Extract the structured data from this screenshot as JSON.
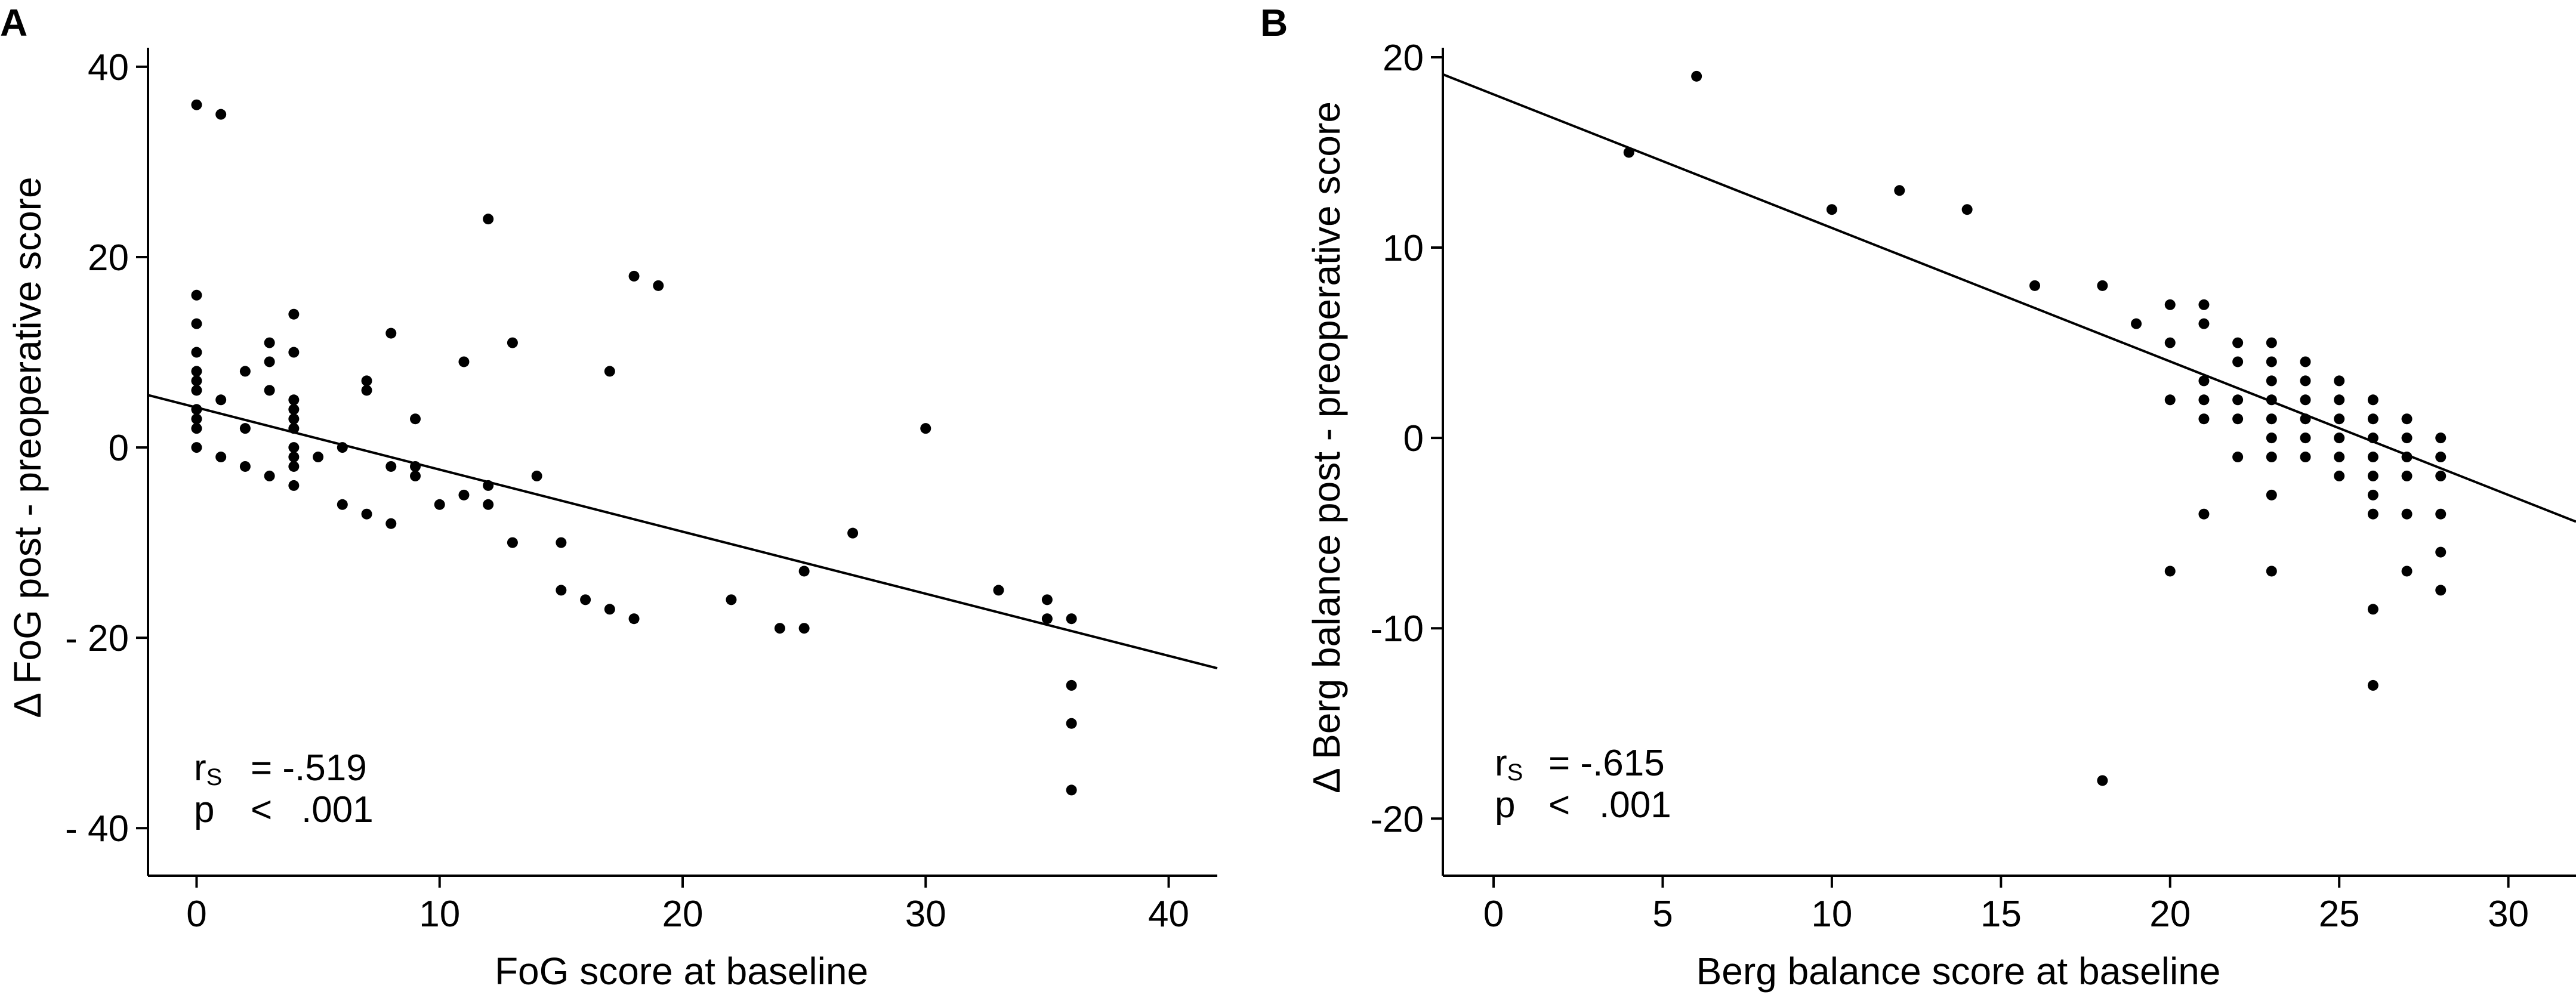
{
  "chart_data": [
    {
      "type": "scatter",
      "panel": "A",
      "xlabel": "FoG score  at baseline",
      "ylabel": "Δ FoG post - preoperative score",
      "xlim": [
        -2,
        42
      ],
      "ylim": [
        -45,
        42
      ],
      "xticks": [
        0,
        10,
        20,
        30,
        40
      ],
      "xtick_labels": [
        "0",
        "10",
        "20",
        "30",
        "40"
      ],
      "yticks": [
        40,
        20,
        0,
        -20,
        -40
      ],
      "ytick_labels": [
        "40",
        "20",
        "0",
        "- 20",
        "- 40"
      ],
      "trendline": {
        "x": [
          -2,
          42
        ],
        "y": [
          5.5,
          -23.2
        ]
      },
      "stat_rs": "r",
      "stat_rs_sub": "S",
      "stat_rs_value": "= -.519",
      "stat_p": "p",
      "stat_p_op": "<",
      "stat_p_value": ".001",
      "points": [
        [
          0,
          36
        ],
        [
          1,
          35
        ],
        [
          0,
          16
        ],
        [
          0,
          13
        ],
        [
          0,
          10
        ],
        [
          0,
          8
        ],
        [
          0,
          7
        ],
        [
          0,
          6
        ],
        [
          0,
          4
        ],
        [
          0,
          3
        ],
        [
          0,
          2
        ],
        [
          0,
          0
        ],
        [
          1,
          5
        ],
        [
          1,
          -1
        ],
        [
          2,
          8
        ],
        [
          2,
          2
        ],
        [
          2,
          -2
        ],
        [
          3,
          11
        ],
        [
          3,
          9
        ],
        [
          3,
          6
        ],
        [
          3,
          -3
        ],
        [
          4,
          14
        ],
        [
          4,
          10
        ],
        [
          4,
          5
        ],
        [
          4,
          4
        ],
        [
          4,
          3
        ],
        [
          4,
          2
        ],
        [
          4,
          0
        ],
        [
          4,
          -1
        ],
        [
          4,
          -2
        ],
        [
          4,
          -4
        ],
        [
          5,
          -1
        ],
        [
          6,
          0
        ],
        [
          6,
          -6
        ],
        [
          7,
          7
        ],
        [
          7,
          6
        ],
        [
          7,
          -7
        ],
        [
          8,
          12
        ],
        [
          8,
          -2
        ],
        [
          8,
          -8
        ],
        [
          9,
          3
        ],
        [
          9,
          -2
        ],
        [
          9,
          -3
        ],
        [
          10,
          -6
        ],
        [
          11,
          9
        ],
        [
          11,
          -5
        ],
        [
          12,
          24
        ],
        [
          12,
          -4
        ],
        [
          12,
          -6
        ],
        [
          13,
          11
        ],
        [
          13,
          -10
        ],
        [
          14,
          -3
        ],
        [
          15,
          -10
        ],
        [
          15,
          -15
        ],
        [
          16,
          -16
        ],
        [
          17,
          8
        ],
        [
          17,
          -17
        ],
        [
          18,
          18
        ],
        [
          18,
          -18
        ],
        [
          19,
          17
        ],
        [
          22,
          -16
        ],
        [
          24,
          -19
        ],
        [
          25,
          -13
        ],
        [
          25,
          -19
        ],
        [
          27,
          -9
        ],
        [
          30,
          2
        ],
        [
          33,
          -15
        ],
        [
          35,
          -16
        ],
        [
          35,
          -18
        ],
        [
          36,
          -18
        ],
        [
          36,
          -25
        ],
        [
          36,
          -29
        ],
        [
          36,
          -36
        ]
      ]
    },
    {
      "type": "scatter",
      "panel": "B",
      "xlabel": "Berg balance score at baseline",
      "ylabel": "Δ Berg balance  post - preoperative score",
      "xlim": [
        -1.5,
        32
      ],
      "ylim": [
        -23,
        20.5
      ],
      "xticks": [
        0,
        5,
        10,
        15,
        20,
        25,
        30
      ],
      "xtick_labels": [
        "0",
        "5",
        "10",
        "15",
        "20",
        "25",
        "30"
      ],
      "yticks": [
        20,
        10,
        0,
        -10,
        -20
      ],
      "ytick_labels": [
        "20",
        "10",
        "0",
        "-10",
        "-20"
      ],
      "trendline": {
        "x": [
          -1.5,
          32
        ],
        "y": [
          19.1,
          -4.4
        ]
      },
      "stat_rs": "r",
      "stat_rs_sub": "S",
      "stat_rs_value": "= -.615",
      "stat_p": "p",
      "stat_p_op": "<",
      "stat_p_value": ".001",
      "points": [
        [
          4,
          15
        ],
        [
          6,
          19
        ],
        [
          10,
          12
        ],
        [
          12,
          13
        ],
        [
          14,
          12
        ],
        [
          16,
          8
        ],
        [
          18,
          8
        ],
        [
          18,
          -18
        ],
        [
          19,
          6
        ],
        [
          20,
          7
        ],
        [
          20,
          5
        ],
        [
          20,
          2
        ],
        [
          20,
          -7
        ],
        [
          21,
          7
        ],
        [
          21,
          6
        ],
        [
          21,
          3
        ],
        [
          21,
          2
        ],
        [
          21,
          1
        ],
        [
          21,
          -4
        ],
        [
          22,
          5
        ],
        [
          22,
          4
        ],
        [
          22,
          2
        ],
        [
          22,
          1
        ],
        [
          22,
          -1
        ],
        [
          23,
          5
        ],
        [
          23,
          4
        ],
        [
          23,
          3
        ],
        [
          23,
          2
        ],
        [
          23,
          1
        ],
        [
          23,
          0
        ],
        [
          23,
          -1
        ],
        [
          23,
          -3
        ],
        [
          23,
          -7
        ],
        [
          24,
          4
        ],
        [
          24,
          3
        ],
        [
          24,
          2
        ],
        [
          24,
          1
        ],
        [
          24,
          0
        ],
        [
          24,
          -1
        ],
        [
          25,
          3
        ],
        [
          25,
          2
        ],
        [
          25,
          1
        ],
        [
          25,
          0
        ],
        [
          25,
          -1
        ],
        [
          25,
          -2
        ],
        [
          26,
          2
        ],
        [
          26,
          1
        ],
        [
          26,
          0
        ],
        [
          26,
          -1
        ],
        [
          26,
          -2
        ],
        [
          26,
          -3
        ],
        [
          26,
          -4
        ],
        [
          26,
          -9
        ],
        [
          26,
          -13
        ],
        [
          27,
          1
        ],
        [
          27,
          0
        ],
        [
          27,
          -1
        ],
        [
          27,
          -2
        ],
        [
          27,
          -4
        ],
        [
          27,
          -7
        ],
        [
          28,
          0
        ],
        [
          28,
          -1
        ],
        [
          28,
          -2
        ],
        [
          28,
          -4
        ],
        [
          28,
          -6
        ],
        [
          28,
          -8
        ]
      ]
    }
  ]
}
